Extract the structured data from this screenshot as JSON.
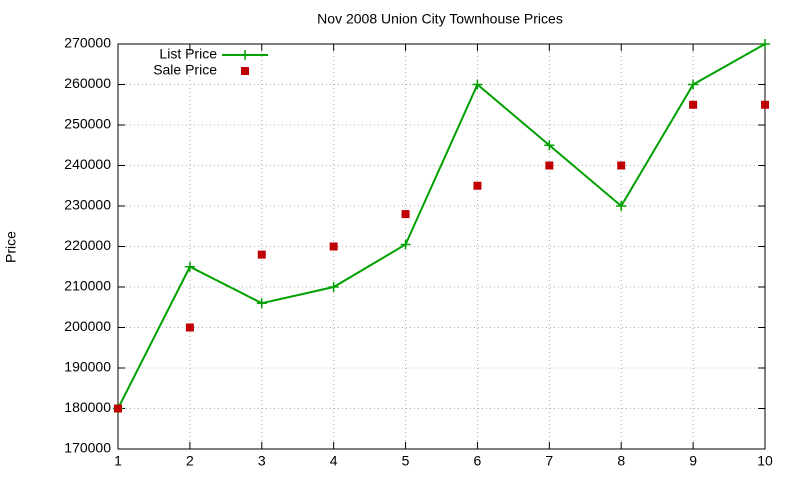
{
  "chart_data": {
    "type": "line",
    "title": "Nov 2008 Union City Townhouse Prices",
    "y_label": "Price",
    "x": [
      1,
      2,
      3,
      4,
      5,
      6,
      7,
      8,
      9,
      10
    ],
    "series": [
      {
        "name": "List Price",
        "color": "#00a000",
        "mode": "lines+markers",
        "marker": "plus",
        "values": [
          180000,
          215000,
          206000,
          210000,
          220500,
          260000,
          245000,
          230000,
          260000,
          270000
        ]
      },
      {
        "name": "Sale Price",
        "color": "#c00000",
        "mode": "markers",
        "marker": "square",
        "values": [
          180000,
          200000,
          218000,
          220000,
          228000,
          235000,
          240000,
          240000,
          255000,
          255000
        ]
      }
    ],
    "xlim": [
      1,
      10
    ],
    "xticks": [
      1,
      2,
      3,
      4,
      5,
      6,
      7,
      8,
      9,
      10
    ],
    "ylim": [
      170000,
      270000
    ],
    "yticks": [
      170000,
      180000,
      190000,
      200000,
      210000,
      220000,
      230000,
      240000,
      250000,
      260000,
      270000
    ],
    "grid": true,
    "legend": "top-left"
  }
}
